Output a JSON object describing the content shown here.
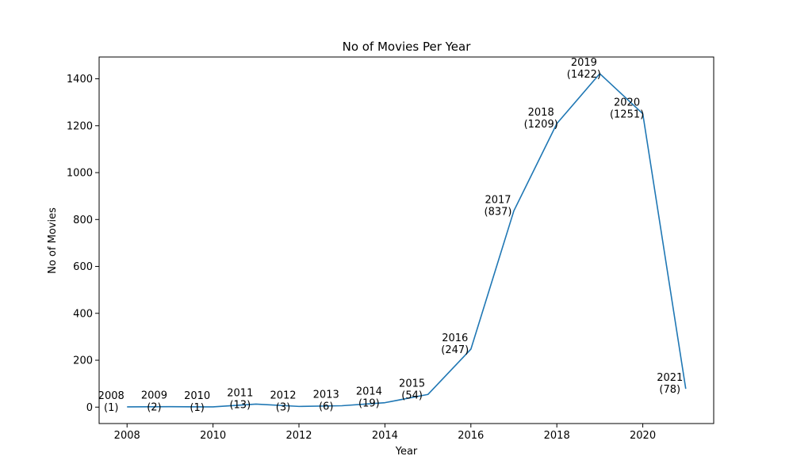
{
  "chart_data": {
    "type": "line",
    "title": "No of Movies Per Year",
    "xlabel": "Year",
    "ylabel": "No of Movies",
    "x": [
      2008,
      2009,
      2010,
      2011,
      2012,
      2013,
      2014,
      2015,
      2016,
      2017,
      2018,
      2019,
      2020,
      2021
    ],
    "y": [
      1,
      2,
      1,
      13,
      3,
      6,
      19,
      54,
      247,
      837,
      1209,
      1422,
      1251,
      78
    ],
    "xlim": [
      2007.35,
      2021.65
    ],
    "ylim": [
      -70,
      1493
    ],
    "xticks": [
      2008,
      2010,
      2012,
      2014,
      2016,
      2018,
      2020
    ],
    "yticks": [
      0,
      200,
      400,
      600,
      800,
      1000,
      1200,
      1400
    ],
    "grid": false,
    "line_color": "#1f77b4",
    "annotations": [
      {
        "year": "2008",
        "count": "(1)"
      },
      {
        "year": "2009",
        "count": "(2)"
      },
      {
        "year": "2010",
        "count": "(1)"
      },
      {
        "year": "2011",
        "count": "(13)"
      },
      {
        "year": "2012",
        "count": "(3)"
      },
      {
        "year": "2013",
        "count": "(6)"
      },
      {
        "year": "2014",
        "count": "(19)"
      },
      {
        "year": "2015",
        "count": "(54)"
      },
      {
        "year": "2016",
        "count": "(247)"
      },
      {
        "year": "2017",
        "count": "(837)"
      },
      {
        "year": "2018",
        "count": "(1209)"
      },
      {
        "year": "2019",
        "count": "(1422)"
      },
      {
        "year": "2020",
        "count": "(1251)"
      },
      {
        "year": "2021",
        "count": "(78)"
      }
    ]
  }
}
